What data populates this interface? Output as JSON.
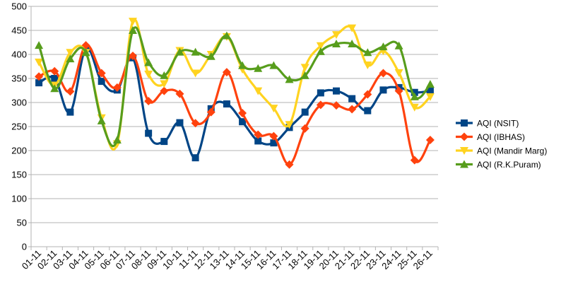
{
  "chart_data": {
    "type": "line",
    "title": "",
    "xlabel": "",
    "ylabel": "",
    "ylim": [
      0,
      500
    ],
    "yticks": [
      0,
      50,
      100,
      150,
      200,
      250,
      300,
      350,
      400,
      450,
      500
    ],
    "grid": "horizontal",
    "legend_position": "right",
    "smooth": true,
    "categories": [
      "01-11",
      "02-11",
      "03-11",
      "04-11",
      "05-11",
      "06-11",
      "07-11",
      "08-11",
      "09-11",
      "10-11",
      "11-11",
      "12-11",
      "13-11",
      "14-11",
      "15-11",
      "16-11",
      "17-11",
      "18-11",
      "19-11",
      "20-11",
      "21-11",
      "22-11",
      "23-11",
      "24-11",
      "25-11",
      "26-11"
    ],
    "series": [
      {
        "name": "AQI (NSIT)",
        "color": "#004586",
        "marker": "square",
        "values": [
          341,
          350,
          280,
          412,
          344,
          326,
          393,
          236,
          219,
          258,
          185,
          287,
          297,
          260,
          220,
          216,
          248,
          280,
          320,
          324,
          308,
          283,
          326,
          331,
          321,
          324
        ]
      },
      {
        "name": "AQI (IBHAS)",
        "color": "#ff420e",
        "marker": "diamond",
        "values": [
          354,
          365,
          323,
          419,
          361,
          331,
          397,
          303,
          324,
          318,
          257,
          280,
          363,
          278,
          233,
          230,
          171,
          246,
          295,
          294,
          286,
          317,
          361,
          324,
          180,
          222
        ]
      },
      {
        "name": "AQI (Mandir Marg)",
        "color": "#ffd320",
        "marker": "triangle-down",
        "values": [
          384,
          336,
          404,
          404,
          268,
          214,
          469,
          359,
          339,
          408,
          361,
          400,
          437,
          369,
          324,
          288,
          254,
          373,
          418,
          441,
          455,
          378,
          407,
          362,
          290,
          312
        ]
      },
      {
        "name": "AQI (R.K.Puram)",
        "color": "#579d1c",
        "marker": "triangle-up",
        "values": [
          419,
          329,
          391,
          404,
          262,
          222,
          450,
          383,
          356,
          405,
          405,
          396,
          439,
          377,
          371,
          377,
          348,
          356,
          406,
          422,
          422,
          404,
          416,
          418,
          312,
          338
        ]
      }
    ]
  }
}
